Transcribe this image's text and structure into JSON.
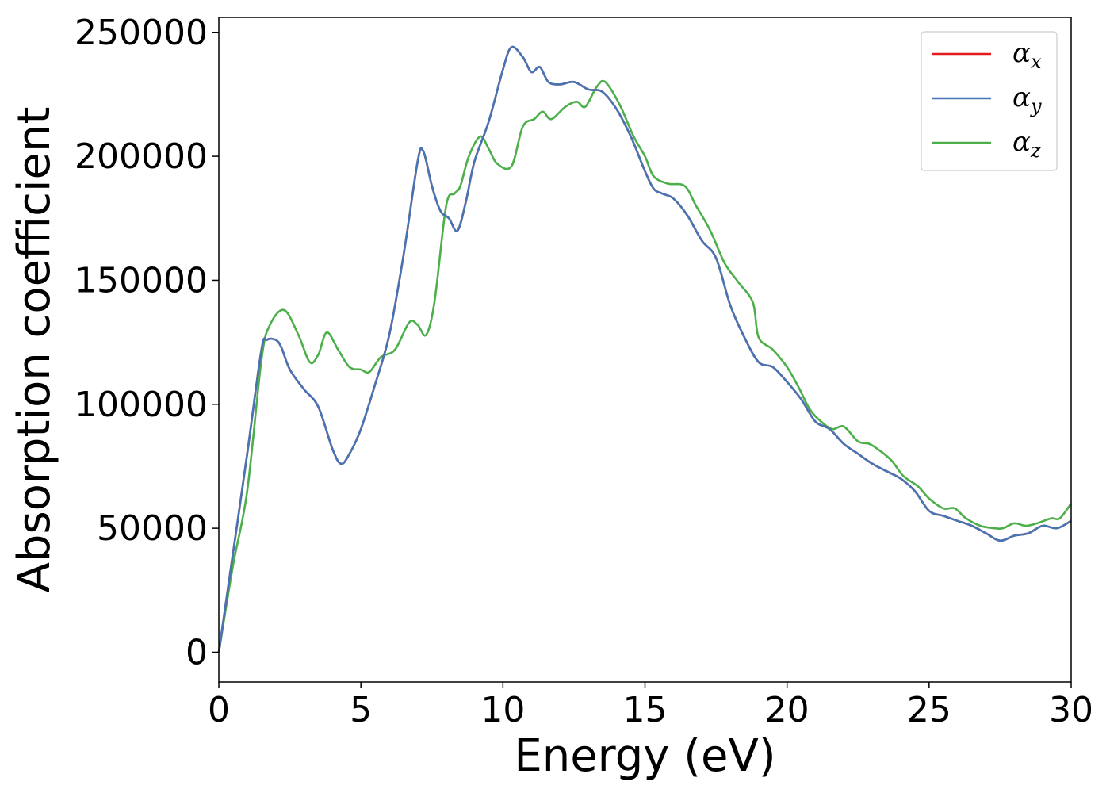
{
  "chart_data": {
    "type": "line",
    "xlabel": "Energy (eV)",
    "ylabel": "Absorption coefficient",
    "xlim": [
      0,
      30
    ],
    "ylim": [
      -12000,
      256000
    ],
    "x_ticks": [
      0,
      5,
      10,
      15,
      20,
      25,
      30
    ],
    "y_ticks": [
      0,
      50000,
      100000,
      150000,
      200000,
      250000
    ],
    "grid": false,
    "legend_placement": "top-right",
    "series": [
      {
        "name": "α_x",
        "legend_base": "α",
        "legend_sub": "x",
        "color": "#e41a1c",
        "points": [
          [
            0,
            0
          ],
          [
            0.5,
            40000
          ],
          [
            1,
            80000
          ],
          [
            1.5,
            122000
          ],
          [
            1.7,
            126000
          ],
          [
            2,
            126000
          ],
          [
            2.2,
            123000
          ],
          [
            2.5,
            114000
          ],
          [
            3,
            106000
          ],
          [
            3.5,
            99000
          ],
          [
            4,
            82000
          ],
          [
            4.3,
            76000
          ],
          [
            4.6,
            80000
          ],
          [
            5,
            90000
          ],
          [
            5.5,
            108000
          ],
          [
            6,
            128000
          ],
          [
            6.5,
            160000
          ],
          [
            7,
            198000
          ],
          [
            7.2,
            202000
          ],
          [
            7.5,
            188000
          ],
          [
            7.8,
            178000
          ],
          [
            8.1,
            175000
          ],
          [
            8.4,
            170000
          ],
          [
            8.7,
            182000
          ],
          [
            9,
            198000
          ],
          [
            9.5,
            214000
          ],
          [
            10,
            235000
          ],
          [
            10.3,
            244000
          ],
          [
            10.7,
            240000
          ],
          [
            11,
            234000
          ],
          [
            11.3,
            236000
          ],
          [
            11.6,
            230000
          ],
          [
            12,
            229000
          ],
          [
            12.5,
            230000
          ],
          [
            13,
            227000
          ],
          [
            13.5,
            226000
          ],
          [
            14,
            219000
          ],
          [
            14.5,
            208000
          ],
          [
            15,
            194000
          ],
          [
            15.3,
            187000
          ],
          [
            15.6,
            185000
          ],
          [
            16,
            183000
          ],
          [
            16.5,
            176000
          ],
          [
            17,
            166000
          ],
          [
            17.5,
            159000
          ],
          [
            18,
            140000
          ],
          [
            18.5,
            127000
          ],
          [
            19,
            117000
          ],
          [
            19.5,
            115000
          ],
          [
            20,
            109000
          ],
          [
            20.5,
            102000
          ],
          [
            21,
            93000
          ],
          [
            21.5,
            90000
          ],
          [
            22,
            84000
          ],
          [
            22.5,
            80000
          ],
          [
            23,
            76000
          ],
          [
            23.5,
            73000
          ],
          [
            24,
            70000
          ],
          [
            24.5,
            65000
          ],
          [
            25,
            57000
          ],
          [
            25.5,
            55000
          ],
          [
            26,
            53000
          ],
          [
            26.5,
            51000
          ],
          [
            27,
            48000
          ],
          [
            27.5,
            45000
          ],
          [
            28,
            47000
          ],
          [
            28.5,
            48000
          ],
          [
            29,
            51000
          ],
          [
            29.5,
            50000
          ],
          [
            30,
            53000
          ]
        ]
      },
      {
        "name": "α_y",
        "legend_base": "α",
        "legend_sub": "y",
        "color": "#4575b4",
        "points": [
          [
            0,
            0
          ],
          [
            0.5,
            40000
          ],
          [
            1,
            80000
          ],
          [
            1.5,
            122000
          ],
          [
            1.7,
            126000
          ],
          [
            2,
            126000
          ],
          [
            2.2,
            123000
          ],
          [
            2.5,
            114000
          ],
          [
            3,
            106000
          ],
          [
            3.5,
            99000
          ],
          [
            4,
            82000
          ],
          [
            4.3,
            76000
          ],
          [
            4.6,
            80000
          ],
          [
            5,
            90000
          ],
          [
            5.5,
            108000
          ],
          [
            6,
            128000
          ],
          [
            6.5,
            160000
          ],
          [
            7,
            198000
          ],
          [
            7.2,
            202000
          ],
          [
            7.5,
            188000
          ],
          [
            7.8,
            178000
          ],
          [
            8.1,
            175000
          ],
          [
            8.4,
            170000
          ],
          [
            8.7,
            182000
          ],
          [
            9,
            198000
          ],
          [
            9.5,
            214000
          ],
          [
            10,
            235000
          ],
          [
            10.3,
            244000
          ],
          [
            10.7,
            240000
          ],
          [
            11,
            234000
          ],
          [
            11.3,
            236000
          ],
          [
            11.6,
            230000
          ],
          [
            12,
            229000
          ],
          [
            12.5,
            230000
          ],
          [
            13,
            227000
          ],
          [
            13.5,
            226000
          ],
          [
            14,
            219000
          ],
          [
            14.5,
            208000
          ],
          [
            15,
            194000
          ],
          [
            15.3,
            187000
          ],
          [
            15.6,
            185000
          ],
          [
            16,
            183000
          ],
          [
            16.5,
            176000
          ],
          [
            17,
            166000
          ],
          [
            17.5,
            159000
          ],
          [
            18,
            140000
          ],
          [
            18.5,
            127000
          ],
          [
            19,
            117000
          ],
          [
            19.5,
            115000
          ],
          [
            20,
            109000
          ],
          [
            20.5,
            102000
          ],
          [
            21,
            93000
          ],
          [
            21.5,
            90000
          ],
          [
            22,
            84000
          ],
          [
            22.5,
            80000
          ],
          [
            23,
            76000
          ],
          [
            23.5,
            73000
          ],
          [
            24,
            70000
          ],
          [
            24.5,
            65000
          ],
          [
            25,
            57000
          ],
          [
            25.5,
            55000
          ],
          [
            26,
            53000
          ],
          [
            26.5,
            51000
          ],
          [
            27,
            48000
          ],
          [
            27.5,
            45000
          ],
          [
            28,
            47000
          ],
          [
            28.5,
            48000
          ],
          [
            29,
            51000
          ],
          [
            29.5,
            50000
          ],
          [
            30,
            53000
          ]
        ]
      },
      {
        "name": "α_z",
        "legend_base": "α",
        "legend_sub": "z",
        "color": "#4daf4a",
        "points": [
          [
            0,
            0
          ],
          [
            0.5,
            35000
          ],
          [
            1,
            65000
          ],
          [
            1.5,
            118000
          ],
          [
            1.8,
            132000
          ],
          [
            2.3,
            138000
          ],
          [
            2.8,
            128000
          ],
          [
            3.2,
            117000
          ],
          [
            3.5,
            120000
          ],
          [
            3.8,
            129000
          ],
          [
            4.2,
            122000
          ],
          [
            4.6,
            115000
          ],
          [
            5,
            114000
          ],
          [
            5.3,
            113000
          ],
          [
            5.7,
            119000
          ],
          [
            6.2,
            122000
          ],
          [
            6.7,
            133000
          ],
          [
            7,
            132000
          ],
          [
            7.3,
            128000
          ],
          [
            7.6,
            142000
          ],
          [
            8,
            180000
          ],
          [
            8.3,
            185000
          ],
          [
            8.5,
            188000
          ],
          [
            8.8,
            200000
          ],
          [
            9.2,
            208000
          ],
          [
            9.5,
            203000
          ],
          [
            9.8,
            197000
          ],
          [
            10.3,
            196000
          ],
          [
            10.7,
            212000
          ],
          [
            11.1,
            215000
          ],
          [
            11.4,
            218000
          ],
          [
            11.7,
            215000
          ],
          [
            12.2,
            220000
          ],
          [
            12.6,
            222000
          ],
          [
            12.9,
            220000
          ],
          [
            13.3,
            228000
          ],
          [
            13.6,
            230000
          ],
          [
            14.1,
            221000
          ],
          [
            14.6,
            208000
          ],
          [
            15,
            200000
          ],
          [
            15.3,
            192000
          ],
          [
            15.8,
            189000
          ],
          [
            16.4,
            188000
          ],
          [
            16.8,
            180000
          ],
          [
            17.3,
            170000
          ],
          [
            17.8,
            157000
          ],
          [
            18.3,
            149000
          ],
          [
            18.8,
            141000
          ],
          [
            19,
            127000
          ],
          [
            19.5,
            122000
          ],
          [
            20,
            115000
          ],
          [
            20.4,
            107000
          ],
          [
            20.8,
            98000
          ],
          [
            21.2,
            93000
          ],
          [
            21.6,
            90000
          ],
          [
            22,
            91000
          ],
          [
            22.5,
            85000
          ],
          [
            22.9,
            84000
          ],
          [
            23.3,
            81000
          ],
          [
            23.7,
            77000
          ],
          [
            24.1,
            71000
          ],
          [
            24.6,
            67000
          ],
          [
            25,
            62000
          ],
          [
            25.5,
            58000
          ],
          [
            25.9,
            58000
          ],
          [
            26.3,
            54000
          ],
          [
            26.8,
            51000
          ],
          [
            27.3,
            50000
          ],
          [
            27.6,
            50000
          ],
          [
            28,
            52000
          ],
          [
            28.4,
            51000
          ],
          [
            28.8,
            52000
          ],
          [
            29.3,
            54000
          ],
          [
            29.6,
            54000
          ],
          [
            30,
            60000
          ]
        ]
      }
    ]
  }
}
